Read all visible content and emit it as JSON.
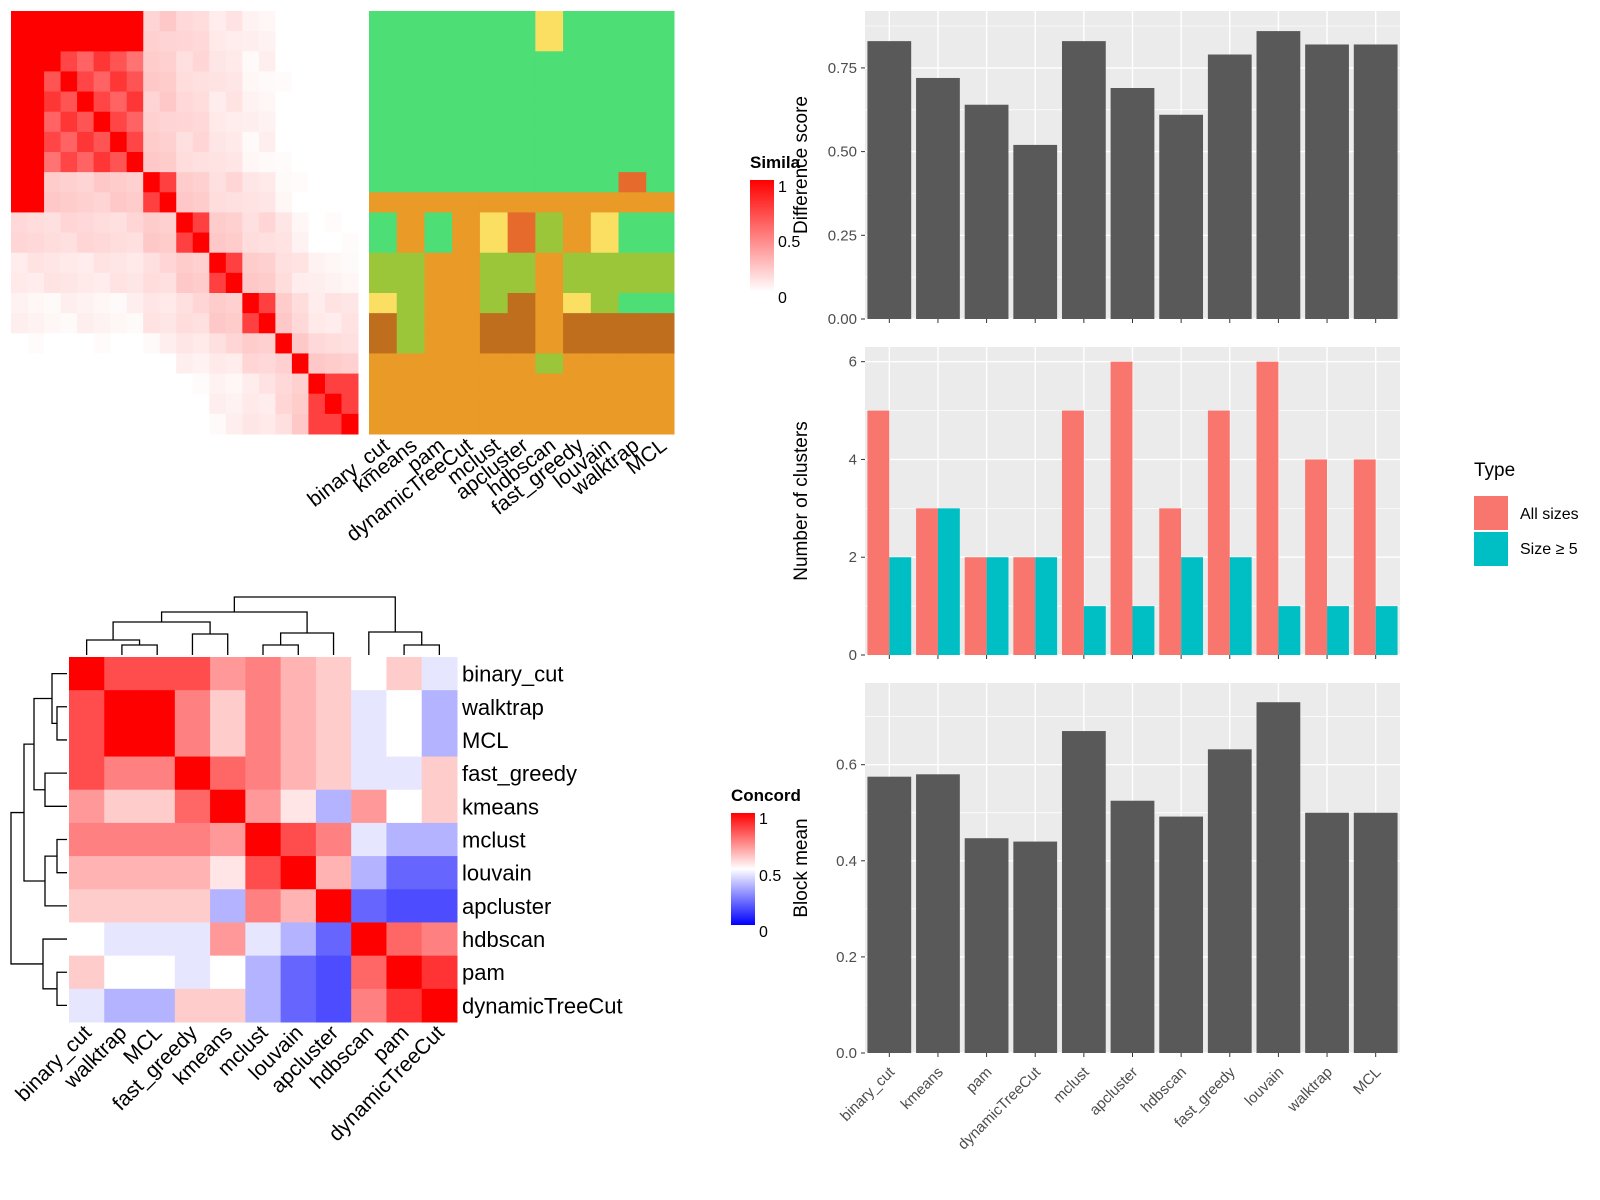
{
  "colors": {
    "panel_bg": "#EBEBEB",
    "grid": "#FFFFFF",
    "bar": "#595959",
    "all_sizes": "#F8766D",
    "size_ge5": "#00BFC4",
    "heat_high": "#FF0000",
    "heat_mid": "#FFFFFF",
    "heat_low": "#0000FF",
    "class_palette": [
      "#4DDE76",
      "#FADF63",
      "#E99A27",
      "#9BC63A",
      "#BF6E1E",
      "#E56A2C"
    ]
  },
  "methods": [
    "binary_cut",
    "kmeans",
    "pam",
    "dynamicTreeCut",
    "mclust",
    "apcluster",
    "hdbscan",
    "fast_greedy",
    "louvain",
    "walktrap",
    "MCL"
  ],
  "similarity_legend": {
    "title": "Simila",
    "ticks": [
      "1",
      "0.5",
      "0"
    ]
  },
  "concordance_legend": {
    "title": "Concord",
    "ticks": [
      "1",
      "0.5",
      "0"
    ]
  },
  "concordance_order": [
    "binary_cut",
    "walktrap",
    "MCL",
    "fast_greedy",
    "kmeans",
    "mclust",
    "louvain",
    "apcluster",
    "hdbscan",
    "pam",
    "dynamicTreeCut"
  ],
  "legend": {
    "title": "Type",
    "items": [
      "All sizes",
      "Size ≥ 5"
    ]
  },
  "chart_data": [
    {
      "type": "heatmap",
      "title": "",
      "description_source": "term similarity matrix (approximate)",
      "size": 21,
      "groups": [
        8,
        2,
        2,
        2,
        2,
        1,
        1,
        3
      ],
      "legend_title": "Simila",
      "scale": [
        0,
        1
      ]
    },
    {
      "type": "heatmap",
      "title": "",
      "x": [
        "binary_cut",
        "kmeans",
        "pam",
        "dynamicTreeCut",
        "mclust",
        "apcluster",
        "hdbscan",
        "fast_greedy",
        "louvain",
        "walktrap",
        "MCL"
      ],
      "class_matrix": [
        [
          0,
          0,
          0,
          0,
          0,
          0,
          0,
          0,
          0,
          0,
          0
        ],
        [
          0,
          0,
          0,
          0,
          0,
          0,
          0,
          0,
          0,
          0,
          0
        ],
        [
          0,
          0,
          0,
          0,
          0,
          0,
          0,
          0,
          0,
          0,
          0
        ],
        [
          0,
          0,
          0,
          0,
          0,
          0,
          0,
          0,
          0,
          0,
          0
        ],
        [
          0,
          0,
          0,
          0,
          0,
          0,
          0,
          0,
          0,
          0,
          0
        ],
        [
          0,
          0,
          0,
          0,
          0,
          0,
          0,
          0,
          0,
          0,
          0
        ],
        [
          0,
          0,
          0,
          0,
          0,
          0,
          0,
          0,
          0,
          0,
          0
        ],
        [
          0,
          0,
          0,
          0,
          0,
          0,
          0,
          0,
          0,
          0,
          0
        ],
        [
          0,
          0,
          0,
          0,
          0,
          0,
          0,
          0,
          0,
          0,
          0
        ],
        [
          2,
          2,
          2,
          2,
          2,
          2,
          2,
          2,
          2,
          2,
          2
        ],
        [
          0,
          2,
          0,
          2,
          1,
          5,
          3,
          2,
          1,
          0,
          0
        ],
        [
          0,
          2,
          0,
          2,
          1,
          5,
          3,
          2,
          1,
          0,
          0
        ],
        [
          3,
          3,
          2,
          2,
          3,
          3,
          2,
          3,
          3,
          3,
          3
        ],
        [
          3,
          3,
          2,
          2,
          3,
          3,
          2,
          3,
          3,
          3,
          3
        ],
        [
          1,
          3,
          2,
          2,
          3,
          4,
          2,
          1,
          3,
          0,
          0
        ],
        [
          4,
          3,
          2,
          2,
          4,
          4,
          2,
          4,
          4,
          4,
          4
        ],
        [
          4,
          3,
          2,
          2,
          4,
          4,
          2,
          4,
          4,
          4,
          4
        ],
        [
          2,
          2,
          2,
          2,
          2,
          2,
          3,
          2,
          2,
          2,
          2
        ],
        [
          2,
          2,
          2,
          2,
          2,
          2,
          2,
          2,
          2,
          2,
          2
        ],
        [
          2,
          2,
          2,
          2,
          2,
          2,
          2,
          2,
          2,
          2,
          2
        ],
        [
          2,
          2,
          2,
          2,
          2,
          2,
          2,
          2,
          2,
          2,
          2
        ]
      ],
      "special_cells": [
        {
          "row": 0,
          "col": 6,
          "class": 1
        },
        {
          "row": 1,
          "col": 6,
          "class": 1
        },
        {
          "row": 8,
          "col": 9,
          "class": 5
        }
      ]
    },
    {
      "type": "heatmap",
      "title": "",
      "legend_title": "Concord",
      "scale": [
        0,
        1
      ],
      "rows": [
        "binary_cut",
        "walktrap",
        "MCL",
        "fast_greedy",
        "kmeans",
        "mclust",
        "louvain",
        "apcluster",
        "hdbscan",
        "pam",
        "dynamicTreeCut"
      ],
      "values": [
        [
          1.0,
          0.85,
          0.85,
          0.85,
          0.7,
          0.75,
          0.65,
          0.6,
          0.5,
          0.6,
          0.45
        ],
        [
          0.85,
          1.0,
          1.0,
          0.75,
          0.6,
          0.75,
          0.65,
          0.6,
          0.45,
          0.5,
          0.35
        ],
        [
          0.85,
          1.0,
          1.0,
          0.75,
          0.6,
          0.75,
          0.65,
          0.6,
          0.45,
          0.5,
          0.35
        ],
        [
          0.85,
          0.75,
          0.75,
          1.0,
          0.8,
          0.75,
          0.65,
          0.6,
          0.45,
          0.45,
          0.6
        ],
        [
          0.7,
          0.6,
          0.6,
          0.8,
          1.0,
          0.7,
          0.55,
          0.35,
          0.7,
          0.5,
          0.6
        ],
        [
          0.75,
          0.75,
          0.75,
          0.75,
          0.7,
          1.0,
          0.85,
          0.75,
          0.45,
          0.35,
          0.35
        ],
        [
          0.65,
          0.65,
          0.65,
          0.65,
          0.55,
          0.85,
          1.0,
          0.65,
          0.35,
          0.2,
          0.2
        ],
        [
          0.6,
          0.6,
          0.6,
          0.6,
          0.35,
          0.75,
          0.65,
          1.0,
          0.2,
          0.15,
          0.15
        ],
        [
          0.5,
          0.45,
          0.45,
          0.45,
          0.7,
          0.45,
          0.35,
          0.2,
          1.0,
          0.8,
          0.75
        ],
        [
          0.6,
          0.5,
          0.5,
          0.45,
          0.5,
          0.35,
          0.2,
          0.15,
          0.8,
          1.0,
          0.9
        ],
        [
          0.45,
          0.35,
          0.35,
          0.6,
          0.6,
          0.35,
          0.2,
          0.15,
          0.75,
          0.9,
          1.0
        ]
      ]
    },
    {
      "type": "bar",
      "title": "",
      "categories": [
        "binary_cut",
        "kmeans",
        "pam",
        "dynamicTreeCut",
        "mclust",
        "apcluster",
        "hdbscan",
        "fast_greedy",
        "louvain",
        "walktrap",
        "MCL"
      ],
      "values": [
        0.83,
        0.72,
        0.64,
        0.52,
        0.83,
        0.69,
        0.61,
        0.79,
        0.86,
        0.82,
        0.82
      ],
      "xlabel": "",
      "ylabel": "Difference score",
      "ylim": [
        0,
        0.92
      ],
      "yticks": [
        "0.00",
        "0.25",
        "0.50",
        "0.75"
      ],
      "grid": true
    },
    {
      "type": "bar",
      "title": "",
      "categories": [
        "binary_cut",
        "kmeans",
        "pam",
        "dynamicTreeCut",
        "mclust",
        "apcluster",
        "hdbscan",
        "fast_greedy",
        "louvain",
        "walktrap",
        "MCL"
      ],
      "series": [
        {
          "name": "All sizes",
          "values": [
            5,
            3,
            2,
            2,
            5,
            6,
            3,
            5,
            6,
            4,
            4
          ]
        },
        {
          "name": "Size ≥ 5",
          "values": [
            2,
            3,
            2,
            2,
            1,
            1,
            2,
            2,
            1,
            1,
            1
          ]
        }
      ],
      "xlabel": "",
      "ylabel": "Number of clusters",
      "ylim": [
        0,
        6.3
      ],
      "yticks": [
        "0",
        "2",
        "4",
        "6"
      ],
      "grid": true,
      "legend": "right"
    },
    {
      "type": "bar",
      "title": "",
      "categories": [
        "binary_cut",
        "kmeans",
        "pam",
        "dynamicTreeCut",
        "mclust",
        "apcluster",
        "hdbscan",
        "fast_greedy",
        "louvain",
        "walktrap",
        "MCL"
      ],
      "values": [
        0.575,
        0.58,
        0.447,
        0.44,
        0.67,
        0.525,
        0.492,
        0.632,
        0.73,
        0.5,
        0.5
      ],
      "xlabel": "",
      "ylabel": "Block mean",
      "ylim": [
        0,
        0.77
      ],
      "yticks": [
        "0.0",
        "0.2",
        "0.4",
        "0.6"
      ],
      "grid": true
    }
  ]
}
